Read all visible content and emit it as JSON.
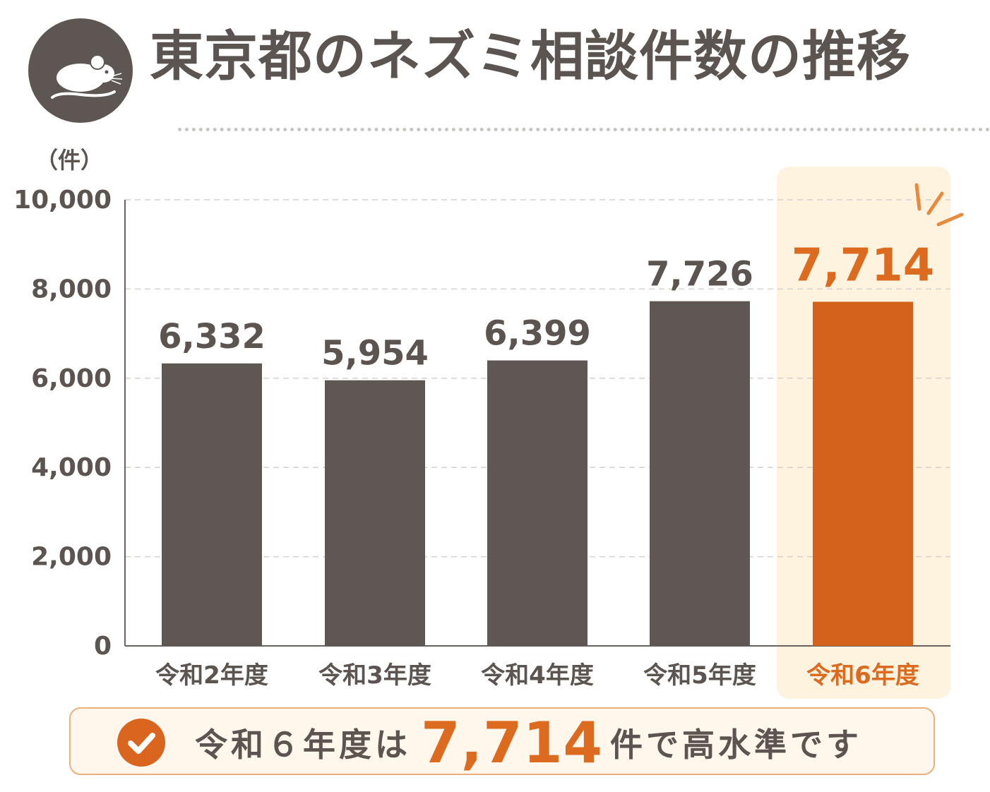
{
  "title": "東京都のネズミ相談件数の推移",
  "icons": {
    "logo": "mouse-icon",
    "check": "check-icon",
    "highlight": "sparkle-icon"
  },
  "colors": {
    "bar": "#5f5753",
    "highlight_bar": "#d4621c",
    "highlight_text": "#dc6a1f",
    "highlight_bg": "#fdf3df",
    "axis_text": "#5b5450"
  },
  "chart_data": {
    "type": "bar",
    "unit_label": "（件）",
    "categories": [
      "令和2年度",
      "令和3年度",
      "令和4年度",
      "令和5年度",
      "令和6年度"
    ],
    "values": [
      6332,
      5954,
      6399,
      7726,
      7714
    ],
    "value_labels": [
      "6,332",
      "5,954",
      "6,399",
      "7,726",
      "7,714"
    ],
    "highlight_index": 4,
    "yticks": [
      0,
      2000,
      4000,
      6000,
      8000,
      10000
    ],
    "ytick_labels": [
      "0",
      "2,000",
      "4,000",
      "6,000",
      "8,000",
      "10,000"
    ],
    "ylim": [
      0,
      10000
    ],
    "grid": true,
    "xlabel": "",
    "ylabel": ""
  },
  "summary": {
    "prefix": "令和６年度は",
    "number": "7,714",
    "suffix": "件で高水準です"
  }
}
